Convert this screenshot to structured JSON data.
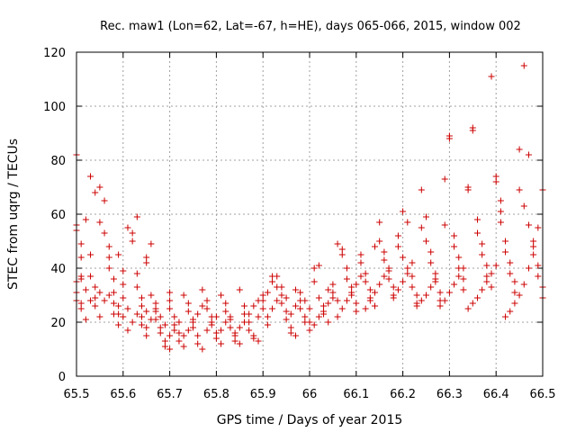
{
  "chart_data": {
    "type": "scatter",
    "title": "Rec. maw1 (Lon=62, Lat=-67, h=HE), days 065-066, 2015, window 002",
    "xlabel": "GPS time / Days of year 2015",
    "ylabel": "STEC from uqrg / TECUs",
    "xlim": [
      65.5,
      66.5
    ],
    "ylim": [
      0,
      120
    ],
    "xticks": [
      "65.5",
      "65.6",
      "65.7",
      "65.8",
      "65.9",
      "66",
      "66.1",
      "66.2",
      "66.3",
      "66.4",
      "66.5"
    ],
    "yticks": [
      "0",
      "20",
      "40",
      "60",
      "80",
      "100",
      "120"
    ],
    "grid": true,
    "marker": "plus",
    "color": "#cc0000",
    "series": [
      {
        "points": [
          [
            65.5,
            82
          ],
          [
            65.5,
            56
          ],
          [
            65.5,
            54
          ],
          [
            65.51,
            49
          ],
          [
            65.51,
            44
          ],
          [
            65.51,
            36
          ],
          [
            65.5,
            35
          ],
          [
            65.5,
            31
          ],
          [
            65.5,
            28
          ],
          [
            65.51,
            27
          ],
          [
            65.51,
            25
          ],
          [
            65.52,
            21
          ],
          [
            65.52,
            58
          ],
          [
            65.53,
            74
          ],
          [
            65.53,
            45
          ],
          [
            65.53,
            37
          ],
          [
            65.54,
            33
          ],
          [
            65.54,
            29
          ],
          [
            65.55,
            22
          ],
          [
            65.54,
            68
          ],
          [
            65.55,
            70
          ],
          [
            65.55,
            57
          ],
          [
            65.56,
            53
          ],
          [
            65.56,
            65
          ],
          [
            65.57,
            48
          ],
          [
            65.57,
            44
          ],
          [
            65.57,
            40
          ],
          [
            65.58,
            36
          ],
          [
            65.58,
            31
          ],
          [
            65.58,
            27
          ],
          [
            65.59,
            23
          ],
          [
            65.59,
            19
          ],
          [
            65.59,
            45
          ],
          [
            65.6,
            39
          ],
          [
            65.6,
            34
          ],
          [
            65.6,
            29
          ],
          [
            65.61,
            25
          ],
          [
            65.61,
            55
          ],
          [
            65.62,
            50
          ],
          [
            65.62,
            53
          ],
          [
            65.63,
            59
          ],
          [
            65.63,
            38
          ],
          [
            65.63,
            33
          ],
          [
            65.64,
            29
          ],
          [
            65.64,
            26
          ],
          [
            65.64,
            22
          ],
          [
            65.65,
            18
          ],
          [
            65.65,
            15
          ],
          [
            65.65,
            44
          ],
          [
            65.65,
            42
          ],
          [
            65.66,
            49
          ],
          [
            65.66,
            30
          ],
          [
            65.67,
            27
          ],
          [
            65.67,
            24
          ],
          [
            65.67,
            21
          ],
          [
            65.68,
            18
          ],
          [
            65.68,
            16
          ],
          [
            65.69,
            13
          ],
          [
            65.69,
            11
          ],
          [
            65.7,
            10
          ],
          [
            65.7,
            31
          ],
          [
            65.7,
            28
          ],
          [
            65.7,
            25
          ],
          [
            65.71,
            22
          ],
          [
            65.71,
            19
          ],
          [
            65.72,
            16
          ],
          [
            65.72,
            13
          ],
          [
            65.73,
            11
          ],
          [
            65.73,
            30
          ],
          [
            65.74,
            27
          ],
          [
            65.74,
            24
          ],
          [
            65.75,
            21
          ],
          [
            65.75,
            18
          ],
          [
            65.76,
            15
          ],
          [
            65.76,
            12
          ],
          [
            65.77,
            10
          ],
          [
            65.77,
            32
          ],
          [
            65.78,
            28
          ],
          [
            65.78,
            25
          ],
          [
            65.79,
            22
          ],
          [
            65.79,
            19
          ],
          [
            65.8,
            16
          ],
          [
            65.8,
            14
          ],
          [
            65.81,
            12
          ],
          [
            65.81,
            30
          ],
          [
            65.82,
            27
          ],
          [
            65.82,
            24
          ],
          [
            65.83,
            21
          ],
          [
            65.83,
            18
          ],
          [
            65.84,
            15
          ],
          [
            65.84,
            13
          ],
          [
            65.85,
            12
          ],
          [
            65.85,
            32
          ],
          [
            65.86,
            26
          ],
          [
            65.86,
            23
          ],
          [
            65.87,
            20
          ],
          [
            65.87,
            17
          ],
          [
            65.88,
            15
          ],
          [
            65.88,
            14
          ],
          [
            65.89,
            13
          ],
          [
            65.89,
            28
          ],
          [
            65.9,
            30
          ],
          [
            65.9,
            25
          ],
          [
            65.91,
            22
          ],
          [
            65.91,
            19
          ],
          [
            65.92,
            37
          ],
          [
            65.92,
            35
          ],
          [
            65.93,
            37
          ],
          [
            65.93,
            33
          ],
          [
            65.94,
            30
          ],
          [
            65.94,
            27
          ],
          [
            65.95,
            24
          ],
          [
            65.95,
            21
          ],
          [
            65.96,
            18
          ],
          [
            65.96,
            16
          ],
          [
            65.97,
            15
          ],
          [
            65.97,
            32
          ],
          [
            65.98,
            28
          ],
          [
            65.98,
            25
          ],
          [
            65.99,
            22
          ],
          [
            65.99,
            20
          ],
          [
            66.0,
            17
          ],
          [
            66.0,
            20
          ],
          [
            66.01,
            40
          ],
          [
            66.01,
            35
          ],
          [
            66.02,
            41
          ],
          [
            66.02,
            29
          ],
          [
            66.03,
            26
          ],
          [
            66.03,
            23
          ],
          [
            66.04,
            20
          ],
          [
            66.04,
            32
          ],
          [
            66.05,
            34
          ],
          [
            66.05,
            31
          ],
          [
            66.06,
            49
          ],
          [
            66.06,
            28
          ],
          [
            66.07,
            47
          ],
          [
            66.07,
            45
          ],
          [
            66.08,
            40
          ],
          [
            66.08,
            36
          ],
          [
            66.09,
            33
          ],
          [
            66.09,
            30
          ],
          [
            66.1,
            27
          ],
          [
            66.1,
            24
          ],
          [
            66.11,
            45
          ],
          [
            66.11,
            42
          ],
          [
            66.12,
            38
          ],
          [
            66.12,
            35
          ],
          [
            66.13,
            32
          ],
          [
            66.13,
            29
          ],
          [
            66.14,
            26
          ],
          [
            66.14,
            48
          ],
          [
            66.15,
            57
          ],
          [
            66.15,
            50
          ],
          [
            66.16,
            46
          ],
          [
            66.16,
            43
          ],
          [
            66.17,
            39
          ],
          [
            66.17,
            36
          ],
          [
            66.18,
            33
          ],
          [
            66.18,
            30
          ],
          [
            66.19,
            52
          ],
          [
            66.19,
            48
          ],
          [
            66.2,
            61
          ],
          [
            66.2,
            44
          ],
          [
            66.21,
            57
          ],
          [
            66.21,
            40
          ],
          [
            66.22,
            37
          ],
          [
            66.22,
            33
          ],
          [
            66.23,
            30
          ],
          [
            66.23,
            27
          ],
          [
            66.24,
            69
          ],
          [
            66.24,
            55
          ],
          [
            66.25,
            59
          ],
          [
            66.25,
            50
          ],
          [
            66.26,
            46
          ],
          [
            66.26,
            42
          ],
          [
            66.27,
            38
          ],
          [
            66.27,
            35
          ],
          [
            66.28,
            31
          ],
          [
            66.28,
            28
          ],
          [
            66.29,
            73
          ],
          [
            66.29,
            56
          ],
          [
            66.3,
            89
          ],
          [
            66.3,
            88
          ],
          [
            66.31,
            52
          ],
          [
            66.31,
            48
          ],
          [
            66.32,
            44
          ],
          [
            66.32,
            40
          ],
          [
            66.33,
            36
          ],
          [
            66.33,
            32
          ],
          [
            66.34,
            69
          ],
          [
            66.34,
            70
          ],
          [
            66.35,
            92
          ],
          [
            66.35,
            91
          ],
          [
            66.36,
            58
          ],
          [
            66.36,
            53
          ],
          [
            66.37,
            49
          ],
          [
            66.37,
            45
          ],
          [
            66.38,
            41
          ],
          [
            66.38,
            37
          ],
          [
            66.39,
            33
          ],
          [
            66.39,
            111
          ],
          [
            66.4,
            74
          ],
          [
            66.4,
            72
          ],
          [
            66.41,
            61
          ],
          [
            66.41,
            57
          ],
          [
            66.42,
            50
          ],
          [
            66.42,
            46
          ],
          [
            66.43,
            42
          ],
          [
            66.43,
            38
          ],
          [
            66.44,
            35
          ],
          [
            66.44,
            31
          ],
          [
            66.45,
            84
          ],
          [
            66.45,
            69
          ],
          [
            66.46,
            115
          ],
          [
            66.46,
            63
          ],
          [
            66.47,
            82
          ],
          [
            66.47,
            56
          ],
          [
            66.48,
            50
          ],
          [
            66.48,
            45
          ],
          [
            66.49,
            41
          ],
          [
            66.49,
            37
          ],
          [
            66.5,
            33
          ],
          [
            66.5,
            29
          ],
          [
            66.5,
            69
          ],
          [
            66.49,
            55
          ],
          [
            66.48,
            48
          ],
          [
            66.47,
            40
          ],
          [
            66.46,
            34
          ],
          [
            66.45,
            30
          ],
          [
            66.44,
            27
          ],
          [
            66.43,
            24
          ],
          [
            66.42,
            22
          ],
          [
            66.41,
            65
          ],
          [
            66.4,
            41
          ],
          [
            66.39,
            38
          ],
          [
            66.38,
            35
          ],
          [
            66.37,
            32
          ],
          [
            66.36,
            29
          ],
          [
            66.35,
            27
          ],
          [
            66.34,
            25
          ],
          [
            66.33,
            40
          ],
          [
            66.32,
            37
          ],
          [
            66.31,
            34
          ],
          [
            66.3,
            31
          ],
          [
            66.29,
            28
          ],
          [
            66.28,
            26
          ],
          [
            66.27,
            36
          ],
          [
            66.26,
            33
          ],
          [
            66.25,
            30
          ],
          [
            66.24,
            28
          ],
          [
            66.23,
            26
          ],
          [
            66.22,
            42
          ],
          [
            66.21,
            38
          ],
          [
            66.2,
            35
          ],
          [
            66.19,
            32
          ],
          [
            66.18,
            29
          ],
          [
            66.17,
            40
          ],
          [
            66.16,
            37
          ],
          [
            66.15,
            34
          ],
          [
            66.14,
            31
          ],
          [
            66.13,
            28
          ],
          [
            66.12,
            25
          ],
          [
            66.11,
            37
          ],
          [
            66.1,
            34
          ],
          [
            66.09,
            31
          ],
          [
            66.08,
            28
          ],
          [
            66.07,
            25
          ],
          [
            66.06,
            22
          ],
          [
            66.05,
            29
          ],
          [
            66.04,
            27
          ],
          [
            66.03,
            24
          ],
          [
            66.02,
            22
          ],
          [
            66.01,
            19
          ],
          [
            66.0,
            25
          ],
          [
            65.99,
            28
          ],
          [
            65.98,
            31
          ],
          [
            65.97,
            26
          ],
          [
            65.96,
            23
          ],
          [
            65.95,
            29
          ],
          [
            65.94,
            33
          ],
          [
            65.93,
            28
          ],
          [
            65.92,
            25
          ],
          [
            65.91,
            31
          ],
          [
            65.9,
            28
          ],
          [
            65.89,
            22
          ],
          [
            65.88,
            26
          ],
          [
            65.87,
            23
          ],
          [
            65.86,
            20
          ],
          [
            65.85,
            18
          ],
          [
            65.84,
            16
          ],
          [
            65.83,
            22
          ],
          [
            65.82,
            20
          ],
          [
            65.81,
            17
          ],
          [
            65.8,
            22
          ],
          [
            65.79,
            20
          ],
          [
            65.78,
            17
          ],
          [
            65.77,
            26
          ],
          [
            65.76,
            23
          ],
          [
            65.75,
            20
          ],
          [
            65.74,
            17
          ],
          [
            65.73,
            15
          ],
          [
            65.72,
            20
          ],
          [
            65.71,
            17
          ],
          [
            65.7,
            15
          ],
          [
            65.69,
            19
          ],
          [
            65.68,
            22
          ],
          [
            65.67,
            25
          ],
          [
            65.66,
            21
          ],
          [
            65.65,
            24
          ],
          [
            65.64,
            19
          ],
          [
            65.63,
            23
          ],
          [
            65.62,
            20
          ],
          [
            65.61,
            17
          ],
          [
            65.6,
            22
          ],
          [
            65.59,
            26
          ],
          [
            65.58,
            23
          ],
          [
            65.57,
            30
          ],
          [
            65.56,
            28
          ],
          [
            65.55,
            31
          ],
          [
            65.54,
            26
          ],
          [
            65.53,
            28
          ],
          [
            65.52,
            32
          ],
          [
            65.51,
            37
          ]
        ]
      }
    ]
  }
}
